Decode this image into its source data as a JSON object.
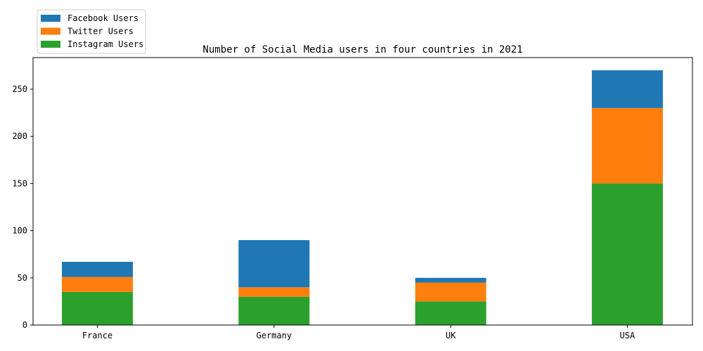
{
  "chart_data": {
    "type": "bar",
    "stacked": true,
    "title": "Number of Social Media users in four countries in 2021",
    "xlabel": "",
    "ylabel": "",
    "categories": [
      "France",
      "Germany",
      "UK",
      "USA"
    ],
    "series": [
      {
        "name": "Instagram Users",
        "color": "#2ca02c",
        "values": [
          35,
          30,
          25,
          150
        ]
      },
      {
        "name": "Twitter Users",
        "color": "#ff7f0e",
        "values": [
          16,
          10,
          20,
          80
        ]
      },
      {
        "name": "Facebook Users",
        "color": "#1f77b4",
        "values": [
          16,
          50,
          5,
          40
        ]
      }
    ],
    "ylim": [
      0,
      283.5
    ],
    "yticks": [
      0,
      50,
      100,
      150,
      200,
      250
    ],
    "legend_order": [
      "Facebook Users",
      "Twitter Users",
      "Instagram Users"
    ],
    "legend_position": "top-left, above plot",
    "grid": false
  }
}
